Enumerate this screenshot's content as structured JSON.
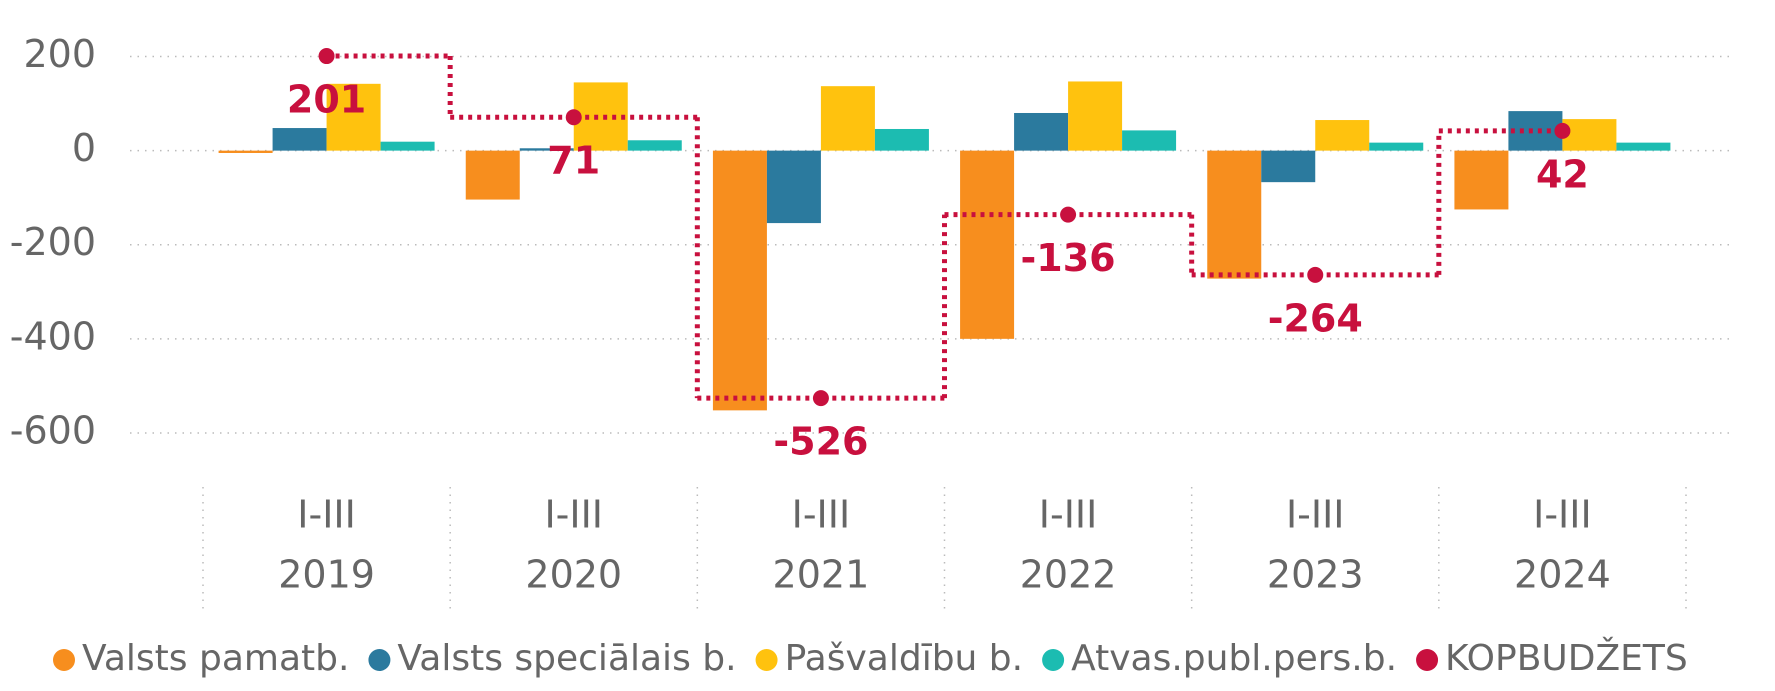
{
  "chart_data": {
    "type": "bar",
    "categories": [
      [
        "I-III",
        "2019"
      ],
      [
        "I-III",
        "2020"
      ],
      [
        "I-III",
        "2021"
      ],
      [
        "I-III",
        "2022"
      ],
      [
        "I-III",
        "2023"
      ],
      [
        "I-III",
        "2024"
      ]
    ],
    "series": [
      {
        "name": "Valsts pamatb.",
        "color": "#F78E1E",
        "values": [
          -5,
          -104,
          -552,
          -400,
          -272,
          -125
        ]
      },
      {
        "name": "Valsts speciālais b.",
        "color": "#2B7A9E",
        "values": [
          48,
          5,
          -154,
          80,
          -67,
          84
        ]
      },
      {
        "name": "Pašvaldību b.",
        "color": "#FFC20E",
        "values": [
          142,
          145,
          137,
          147,
          65,
          67
        ]
      },
      {
        "name": "Atvas.publ.pers.b.",
        "color": "#1CBCB1",
        "values": [
          19,
          22,
          46,
          43,
          17,
          17
        ]
      },
      {
        "name": "KOPBUDŽETS",
        "color": "#C8103E",
        "type": "line",
        "step": "mid",
        "data_labels": true,
        "values": [
          201,
          71,
          -526,
          -136,
          -264,
          42
        ]
      }
    ],
    "ylim": [
      -700,
      250
    ],
    "yticks": [
      200,
      0,
      -200,
      -400,
      -600
    ],
    "grid": true,
    "legend": "bottom"
  }
}
